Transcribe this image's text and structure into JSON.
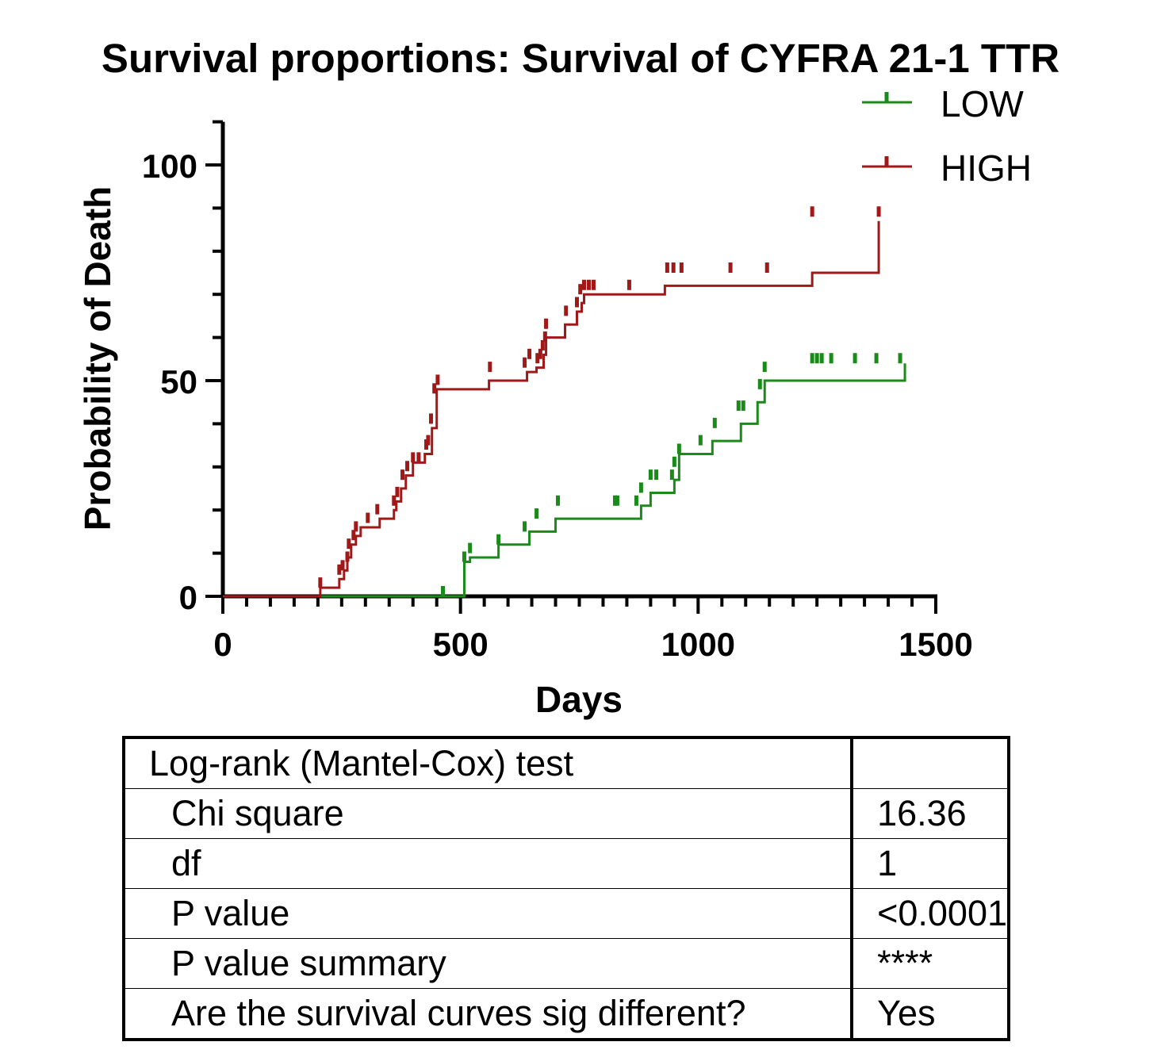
{
  "chart_data": {
    "type": "line",
    "step": true,
    "title": "Survival proportions: Survival of CYFRA 21-1 TTR",
    "xlabel": "Days",
    "ylabel": "Probability of Death",
    "xlim": [
      0,
      1500
    ],
    "ylim": [
      0,
      110
    ],
    "xticks": [
      0,
      500,
      1000,
      1500
    ],
    "yticks": [
      0,
      50,
      100
    ],
    "grid": false,
    "legend": "top-right",
    "series": [
      {
        "name": "LOW",
        "color": "#1a8a1a",
        "x": [
          0,
          508,
          520,
          580,
          645,
          700,
          880,
          900,
          950,
          960,
          1030,
          1090,
          1125,
          1140,
          1435
        ],
        "y": [
          0,
          8,
          9,
          12,
          15,
          18,
          21,
          24,
          27,
          33,
          36,
          40,
          45,
          50,
          54
        ],
        "censored": [
          {
            "x": 463,
            "y": 0
          },
          {
            "x": 508,
            "y": 8
          },
          {
            "x": 520,
            "y": 10
          },
          {
            "x": 580,
            "y": 12
          },
          {
            "x": 635,
            "y": 15
          },
          {
            "x": 660,
            "y": 18
          },
          {
            "x": 705,
            "y": 21
          },
          {
            "x": 825,
            "y": 21
          },
          {
            "x": 830,
            "y": 21
          },
          {
            "x": 870,
            "y": 21
          },
          {
            "x": 880,
            "y": 24
          },
          {
            "x": 900,
            "y": 27
          },
          {
            "x": 912,
            "y": 27
          },
          {
            "x": 945,
            "y": 27
          },
          {
            "x": 950,
            "y": 30
          },
          {
            "x": 960,
            "y": 33
          },
          {
            "x": 1005,
            "y": 35
          },
          {
            "x": 1035,
            "y": 39
          },
          {
            "x": 1085,
            "y": 43
          },
          {
            "x": 1095,
            "y": 43
          },
          {
            "x": 1130,
            "y": 48
          },
          {
            "x": 1140,
            "y": 52
          },
          {
            "x": 1240,
            "y": 54
          },
          {
            "x": 1250,
            "y": 54
          },
          {
            "x": 1260,
            "y": 54
          },
          {
            "x": 1280,
            "y": 54
          },
          {
            "x": 1330,
            "y": 54
          },
          {
            "x": 1375,
            "y": 54
          },
          {
            "x": 1425,
            "y": 54
          }
        ]
      },
      {
        "name": "HIGH",
        "color": "#a01818",
        "x": [
          0,
          205,
          245,
          255,
          262,
          270,
          280,
          290,
          330,
          360,
          365,
          375,
          385,
          400,
          425,
          440,
          450,
          560,
          640,
          660,
          675,
          680,
          720,
          745,
          755,
          760,
          930,
          1240,
          1380
        ],
        "y": [
          0,
          2,
          4,
          6,
          9,
          12,
          14,
          16,
          18,
          20,
          22,
          25,
          28,
          31,
          33,
          39,
          48,
          50,
          52,
          53,
          56,
          60,
          63,
          66,
          68,
          70,
          72,
          75,
          87
        ],
        "censored": [
          {
            "x": 205,
            "y": 2
          },
          {
            "x": 245,
            "y": 5
          },
          {
            "x": 252,
            "y": 6
          },
          {
            "x": 262,
            "y": 8
          },
          {
            "x": 265,
            "y": 11
          },
          {
            "x": 275,
            "y": 13
          },
          {
            "x": 280,
            "y": 15
          },
          {
            "x": 305,
            "y": 17
          },
          {
            "x": 325,
            "y": 19
          },
          {
            "x": 360,
            "y": 21
          },
          {
            "x": 367,
            "y": 23
          },
          {
            "x": 378,
            "y": 27
          },
          {
            "x": 388,
            "y": 29
          },
          {
            "x": 400,
            "y": 31
          },
          {
            "x": 412,
            "y": 31
          },
          {
            "x": 428,
            "y": 34
          },
          {
            "x": 432,
            "y": 35
          },
          {
            "x": 438,
            "y": 40
          },
          {
            "x": 445,
            "y": 47
          },
          {
            "x": 452,
            "y": 49
          },
          {
            "x": 562,
            "y": 52
          },
          {
            "x": 635,
            "y": 53
          },
          {
            "x": 645,
            "y": 55
          },
          {
            "x": 662,
            "y": 54
          },
          {
            "x": 668,
            "y": 55
          },
          {
            "x": 673,
            "y": 57
          },
          {
            "x": 678,
            "y": 59
          },
          {
            "x": 680,
            "y": 62
          },
          {
            "x": 722,
            "y": 65
          },
          {
            "x": 745,
            "y": 67
          },
          {
            "x": 752,
            "y": 70
          },
          {
            "x": 760,
            "y": 71
          },
          {
            "x": 770,
            "y": 71
          },
          {
            "x": 780,
            "y": 71
          },
          {
            "x": 855,
            "y": 71
          },
          {
            "x": 935,
            "y": 75
          },
          {
            "x": 948,
            "y": 75
          },
          {
            "x": 965,
            "y": 75
          },
          {
            "x": 1068,
            "y": 75
          },
          {
            "x": 1145,
            "y": 75
          },
          {
            "x": 1240,
            "y": 88
          },
          {
            "x": 1380,
            "y": 88
          }
        ]
      }
    ]
  },
  "stats_table": {
    "header": "Log-rank (Mantel-Cox) test",
    "rows": [
      {
        "label": "Chi square",
        "value": "16.36"
      },
      {
        "label": "df",
        "value": "1"
      },
      {
        "label": "P value",
        "value": "<0.0001"
      },
      {
        "label": "P value summary",
        "value": "****"
      },
      {
        "label": "Are the survival curves sig different?",
        "value": "Yes"
      }
    ]
  }
}
